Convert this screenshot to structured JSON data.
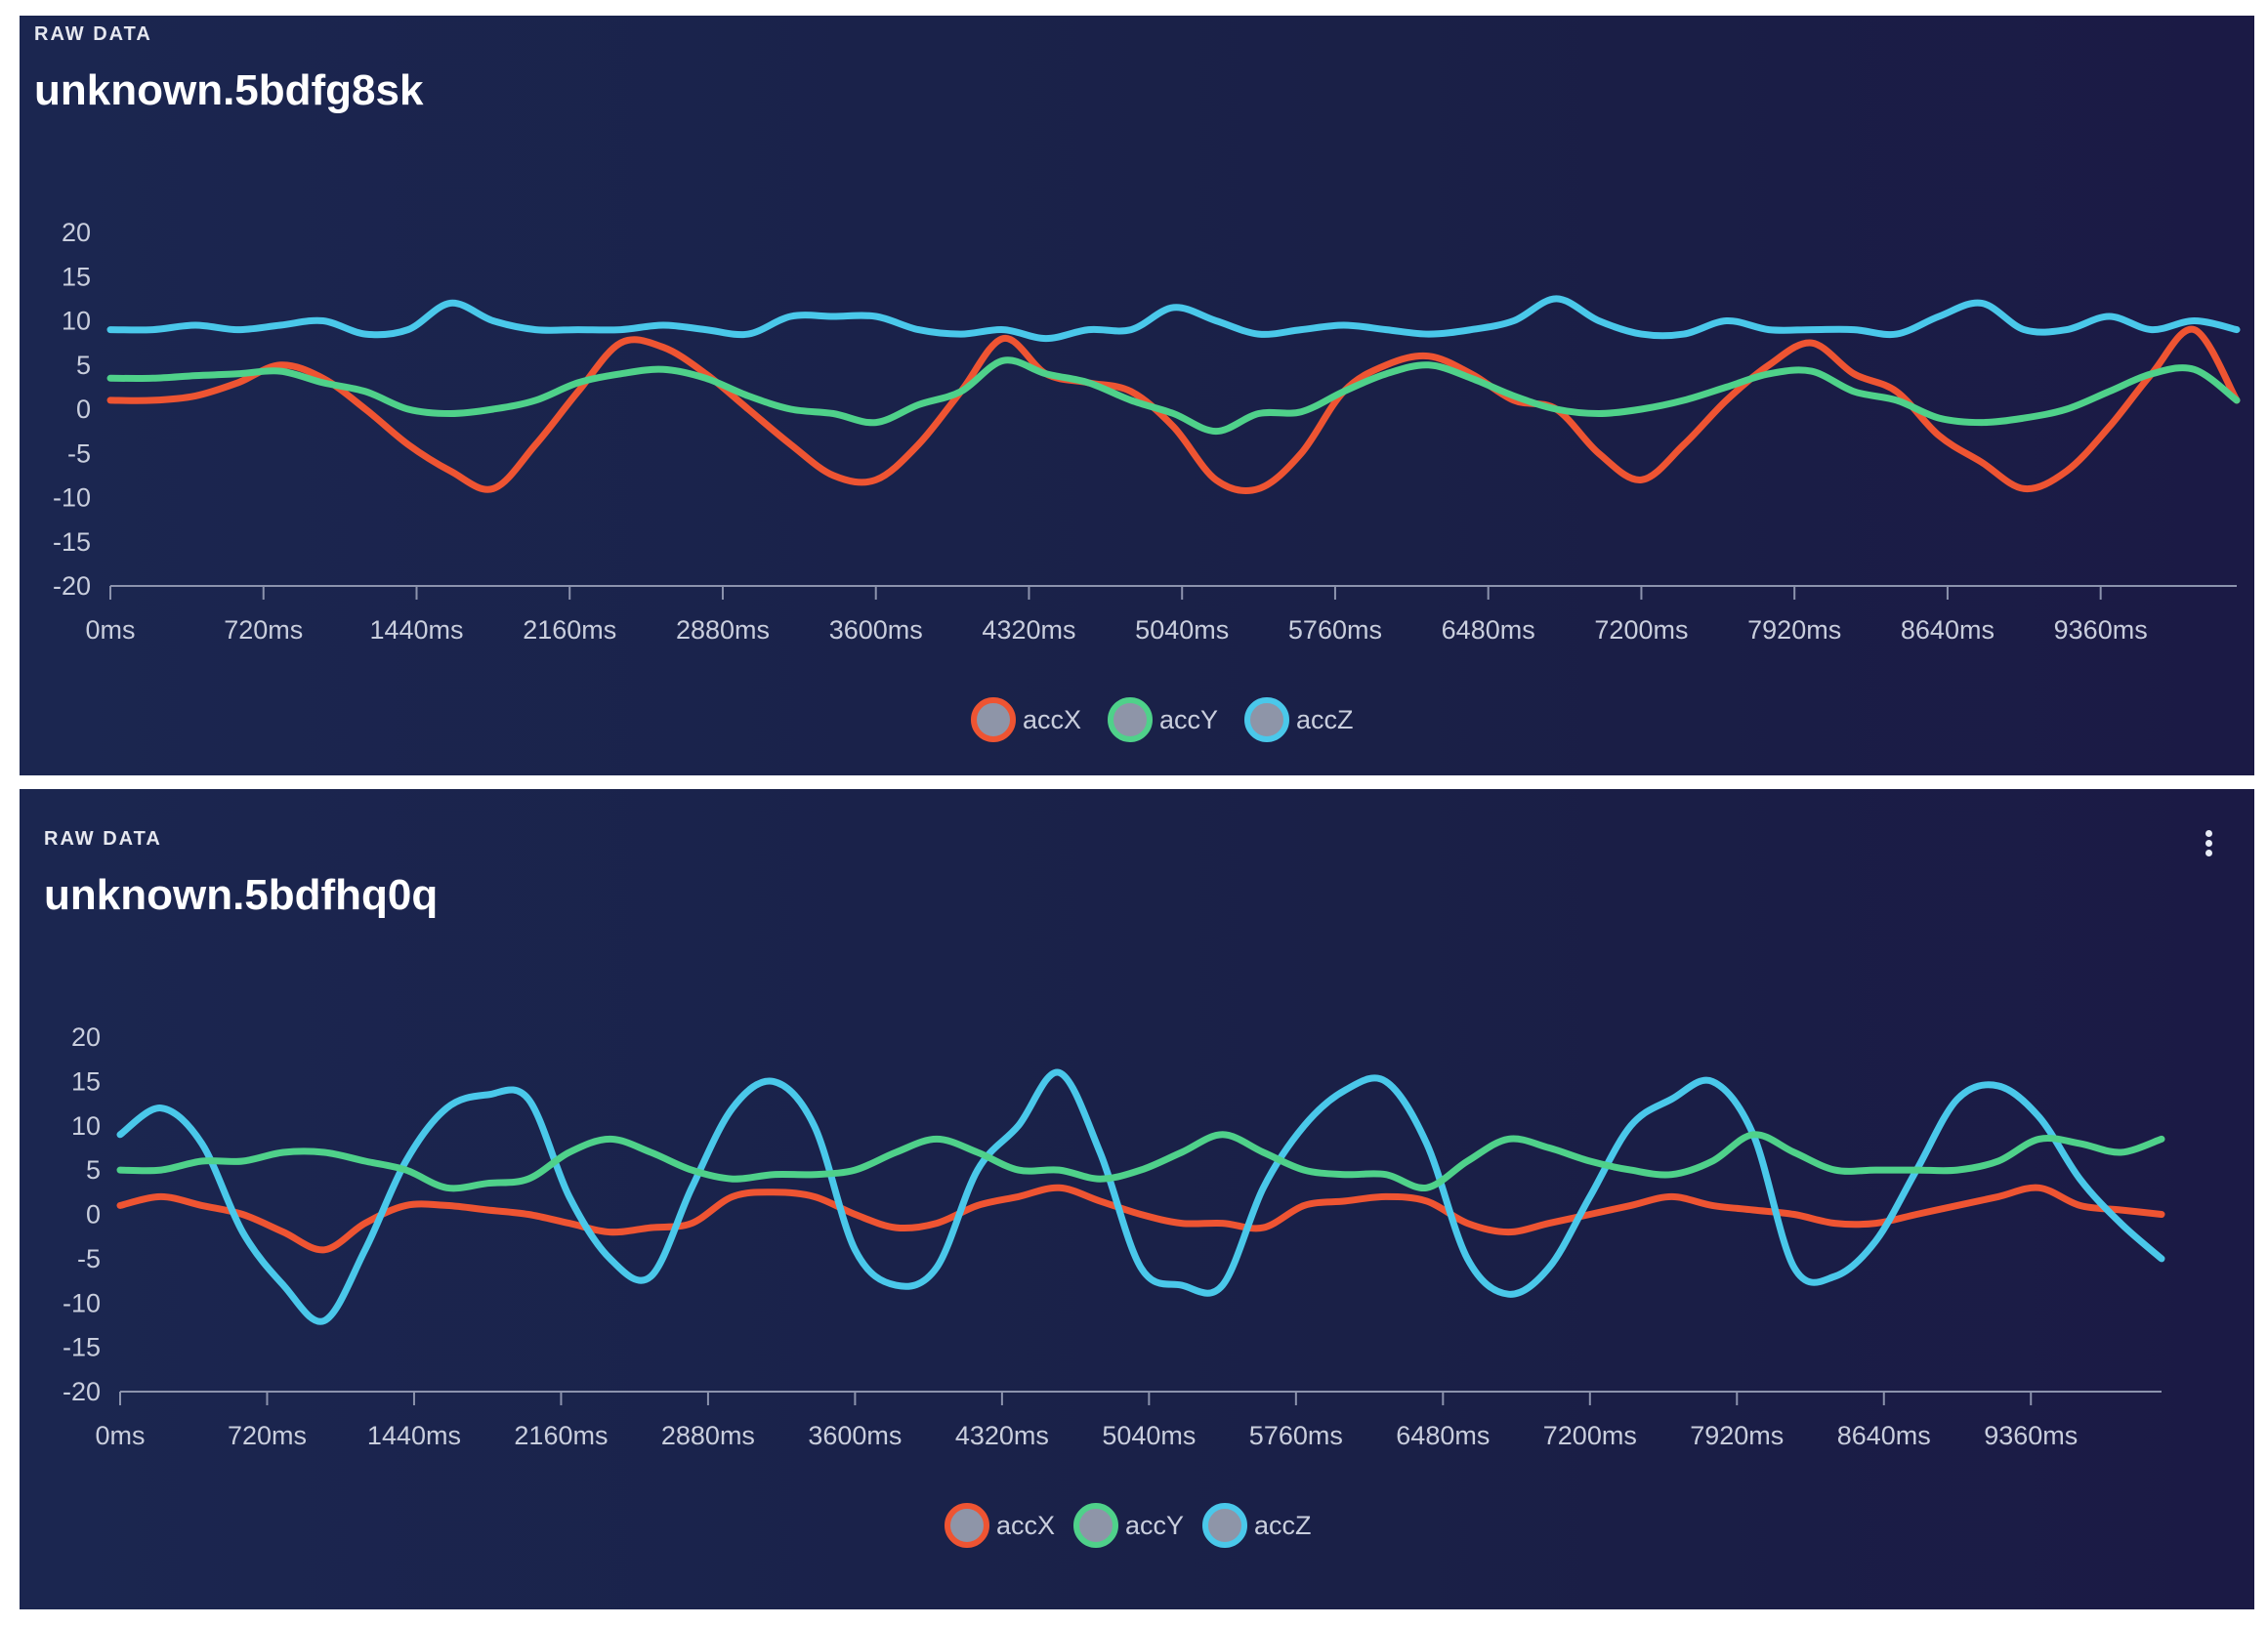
{
  "colors": {
    "accX": "#ee5432",
    "accY": "#4fd18a",
    "accZ": "#4ac8ea",
    "axis": "#8c93ad",
    "legend_fill": "#8e95a8"
  },
  "panels": [
    {
      "label": "RAW DATA",
      "title": "unknown.5bdfg8sk",
      "has_menu": false
    },
    {
      "label": "RAW DATA",
      "title": "unknown.5bdfhq0q",
      "has_menu": true
    }
  ],
  "chart_data": [
    {
      "type": "line",
      "title": "unknown.5bdfg8sk",
      "xlabel": "",
      "ylabel": "",
      "x_unit": "ms",
      "xlim": [
        0,
        10000
      ],
      "ylim": [
        -20,
        20
      ],
      "x_ticks": [
        "0ms",
        "720ms",
        "1440ms",
        "2160ms",
        "2880ms",
        "3600ms",
        "4320ms",
        "5040ms",
        "5760ms",
        "6480ms",
        "7200ms",
        "7920ms",
        "8640ms",
        "9360ms"
      ],
      "y_ticks": [
        "20",
        "15",
        "10",
        "5",
        "0",
        "-5",
        "-10",
        "-15",
        "-20"
      ],
      "x": [
        0,
        200,
        400,
        600,
        800,
        1000,
        1200,
        1400,
        1600,
        1800,
        2000,
        2200,
        2400,
        2600,
        2800,
        3000,
        3200,
        3400,
        3600,
        3800,
        4000,
        4200,
        4400,
        4600,
        4800,
        5000,
        5200,
        5400,
        5600,
        5800,
        6000,
        6200,
        6400,
        6600,
        6800,
        7000,
        7200,
        7400,
        7600,
        7800,
        8000,
        8200,
        8400,
        8600,
        8800,
        9000,
        9200,
        9400,
        9600,
        9800,
        10000
      ],
      "series": [
        {
          "name": "accX",
          "values": [
            1,
            1,
            1.5,
            3,
            5,
            3.5,
            0,
            -4,
            -7,
            -9,
            -4,
            2,
            7.5,
            7,
            4,
            0,
            -4,
            -7.5,
            -8,
            -4,
            2,
            8,
            4,
            3,
            2,
            -2,
            -8,
            -9,
            -5,
            2,
            5,
            6,
            4,
            1,
            0,
            -5,
            -8,
            -4,
            1,
            5,
            7.5,
            4,
            2,
            -3,
            -6,
            -9,
            -7,
            -2,
            4,
            9,
            1
          ]
        },
        {
          "name": "accY",
          "values": [
            3.5,
            3.5,
            3.8,
            4,
            4.3,
            3,
            2,
            0,
            -0.5,
            0,
            1,
            3,
            4,
            4.5,
            3.5,
            1.5,
            0,
            -0.5,
            -1.5,
            0.5,
            2,
            5.5,
            4,
            3,
            1,
            -0.5,
            -2.5,
            -0.5,
            -0.3,
            2,
            4,
            5,
            3.5,
            1.5,
            0,
            -0.5,
            0,
            1,
            2.5,
            4,
            4.3,
            2,
            1,
            -1,
            -1.5,
            -1,
            0,
            2,
            4,
            4.5,
            1
          ]
        },
        {
          "name": "accZ",
          "values": [
            9,
            9,
            9.5,
            9,
            9.5,
            10,
            8.5,
            9,
            12,
            10,
            9,
            9,
            9,
            9.5,
            9,
            8.5,
            10.5,
            10.5,
            10.5,
            9,
            8.5,
            9,
            8,
            9,
            9,
            11.5,
            10,
            8.5,
            9,
            9.5,
            9,
            8.5,
            9,
            10,
            12.5,
            10,
            8.5,
            8.5,
            10,
            9,
            9,
            9,
            8.5,
            10.5,
            12,
            9,
            9,
            10.5,
            9,
            10,
            9
          ]
        }
      ]
    },
    {
      "type": "line",
      "title": "unknown.5bdfhq0q",
      "xlabel": "",
      "ylabel": "",
      "x_unit": "ms",
      "xlim": [
        0,
        10000
      ],
      "ylim": [
        -20,
        20
      ],
      "x_ticks": [
        "0ms",
        "720ms",
        "1440ms",
        "2160ms",
        "2880ms",
        "3600ms",
        "4320ms",
        "5040ms",
        "5760ms",
        "6480ms",
        "7200ms",
        "7920ms",
        "8640ms",
        "9360ms"
      ],
      "y_ticks": [
        "20",
        "15",
        "10",
        "5",
        "0",
        "-5",
        "-10",
        "-15",
        "-20"
      ],
      "x": [
        0,
        200,
        400,
        600,
        800,
        1000,
        1200,
        1400,
        1600,
        1800,
        2000,
        2200,
        2400,
        2600,
        2800,
        3000,
        3200,
        3400,
        3600,
        3800,
        4000,
        4200,
        4400,
        4600,
        4800,
        5000,
        5200,
        5400,
        5600,
        5800,
        6000,
        6200,
        6400,
        6600,
        6800,
        7000,
        7200,
        7400,
        7600,
        7800,
        8000,
        8200,
        8400,
        8600,
        8800,
        9000,
        9200,
        9400,
        9600,
        9800,
        10000
      ],
      "series": [
        {
          "name": "accX",
          "values": [
            1,
            2,
            1,
            0,
            -2,
            -4,
            -1,
            1,
            1,
            0.5,
            0,
            -1,
            -2,
            -1.5,
            -1,
            2,
            2.5,
            2,
            0,
            -1.5,
            -1,
            1,
            2,
            3,
            1.5,
            0,
            -1,
            -1,
            -1.5,
            1,
            1.5,
            2,
            1.5,
            -1,
            -2,
            -1,
            0,
            1,
            2,
            1,
            0.5,
            0,
            -1,
            -1,
            0,
            1,
            2,
            3,
            1,
            0.5,
            0
          ]
        },
        {
          "name": "accZ",
          "values": [
            9,
            12,
            8,
            -2,
            -8,
            -12,
            -4,
            6,
            12,
            13.5,
            13,
            2,
            -5,
            -7,
            3,
            12,
            15,
            10,
            -4,
            -8,
            -6,
            5,
            10,
            16,
            7,
            -6,
            -8,
            -8,
            3,
            10,
            14,
            15,
            8,
            -5,
            -9,
            -6,
            2,
            10,
            13,
            15,
            9,
            -6,
            -7,
            -3,
            5,
            13,
            14.5,
            11,
            4,
            -1,
            -5
          ]
        },
        {
          "name": "accY",
          "values": [
            5,
            5,
            6,
            6,
            7,
            7,
            6,
            5,
            3,
            3.5,
            4,
            7,
            8.5,
            7,
            5,
            4,
            4.5,
            4.5,
            5,
            7,
            8.5,
            7,
            5,
            5,
            4,
            5,
            7,
            9,
            7,
            5,
            4.5,
            4.5,
            3,
            6,
            8.5,
            7.5,
            6,
            5,
            4.5,
            6,
            9,
            7,
            5,
            5,
            5,
            5,
            6,
            8.5,
            8,
            7,
            8.5
          ]
        }
      ]
    }
  ]
}
